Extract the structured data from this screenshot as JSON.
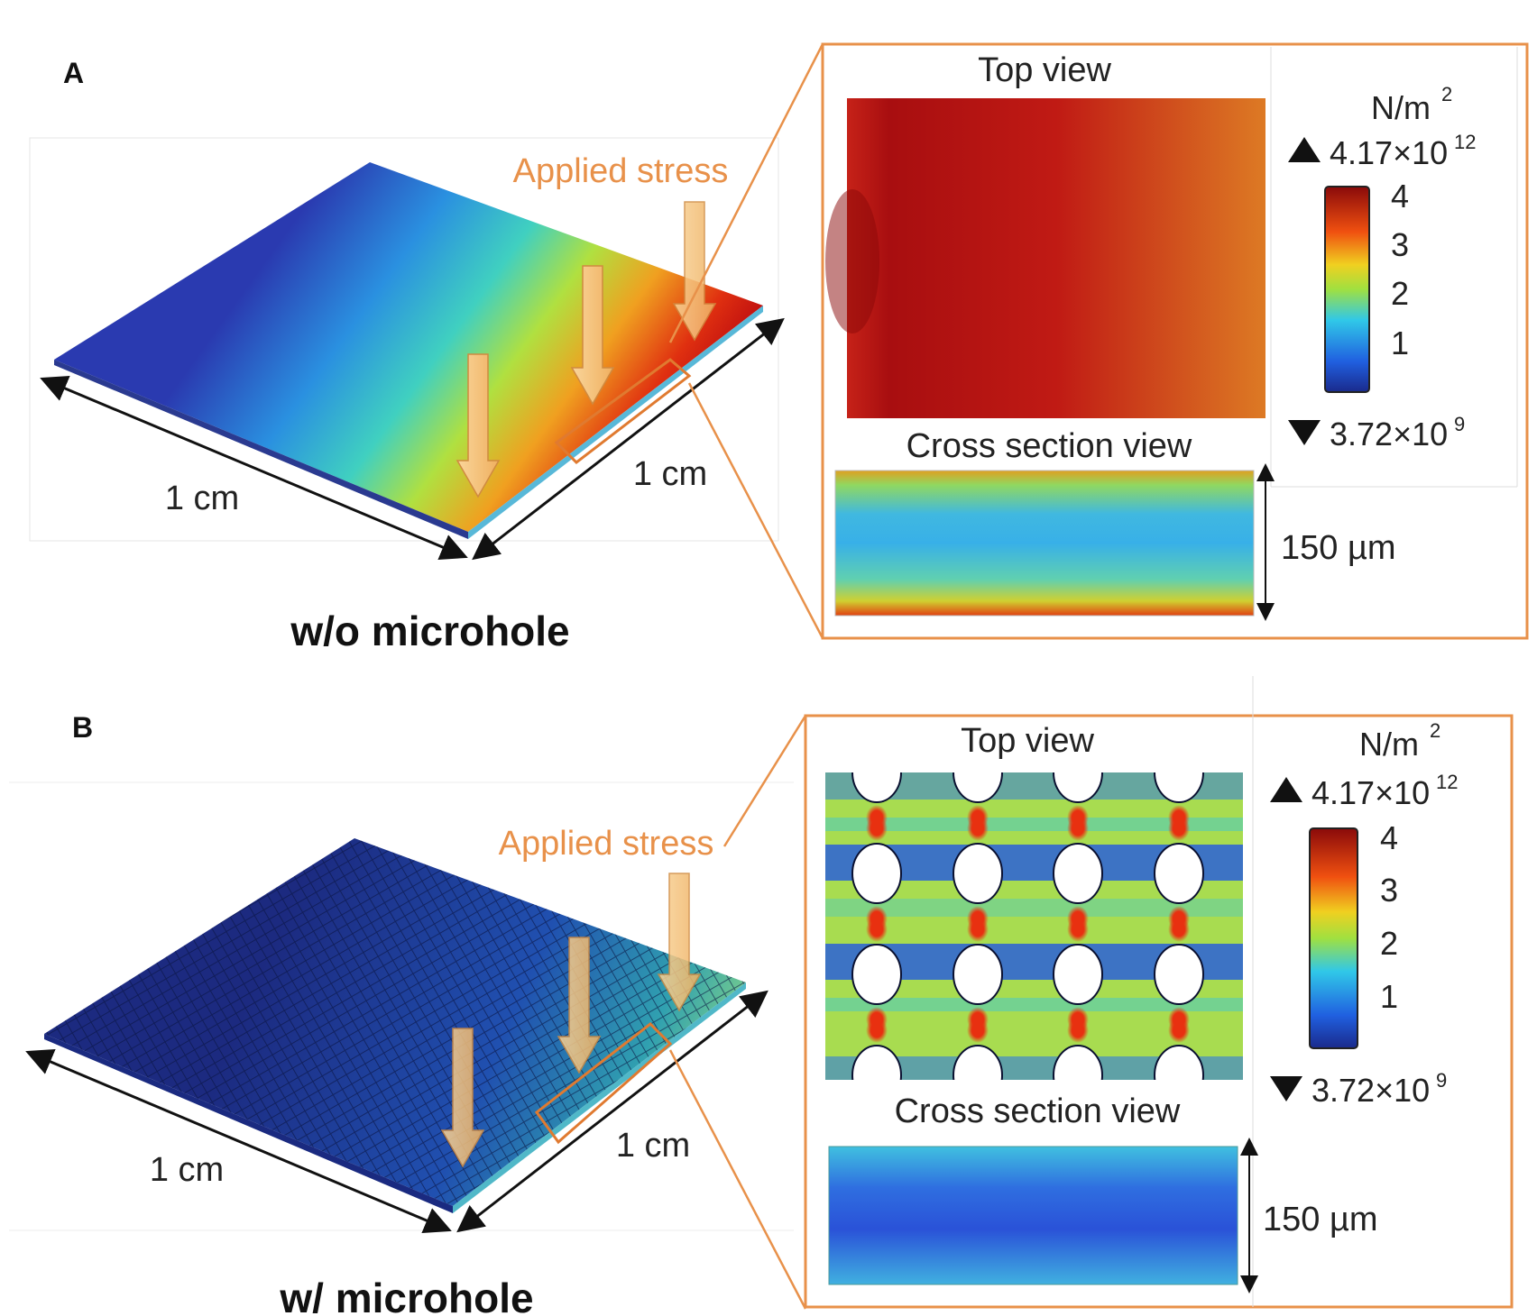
{
  "panels": [
    {
      "label": "A",
      "caption": "w/o microhole",
      "applied_stress": "Applied stress",
      "dim_x": "1 cm",
      "dim_y": "1 cm",
      "top_view": "Top view",
      "cross_section": "Cross section view",
      "thickness": "150 µm",
      "colorbar": {
        "unit_base": "N/m",
        "unit_exp": "2",
        "max_base": "4.17×10",
        "max_exp": "12",
        "min_base": "3.72×10",
        "min_exp": "9",
        "ticks": [
          "4",
          "3",
          "2",
          "1"
        ]
      }
    },
    {
      "label": "B",
      "caption": "w/ microhole",
      "applied_stress": "Applied stress",
      "dim_x": "1 cm",
      "dim_y": "1 cm",
      "top_view": "Top view",
      "cross_section": "Cross section view",
      "thickness": "150 µm",
      "colorbar": {
        "unit_base": "N/m",
        "unit_exp": "2",
        "max_base": "4.17×10",
        "max_exp": "12",
        "min_base": "3.72×10",
        "min_exp": "9",
        "ticks": [
          "4",
          "3",
          "2",
          "1"
        ]
      }
    }
  ],
  "colors": {
    "accent": "#e8914a",
    "arrow": "#f7c98a"
  }
}
